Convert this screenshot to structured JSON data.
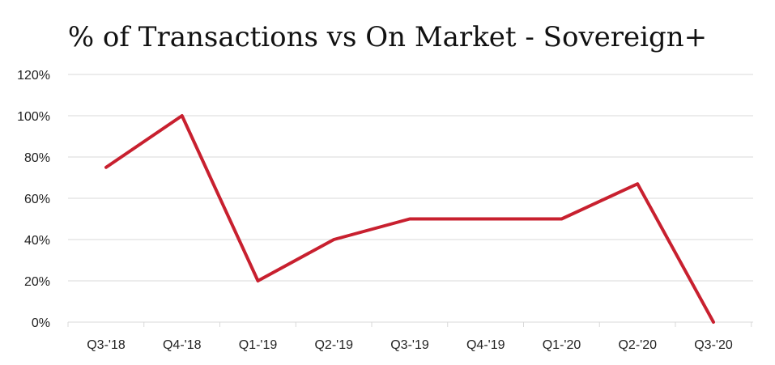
{
  "chart_data": {
    "type": "line",
    "title": "% of Transactions vs On Market - Sovereign+",
    "xlabel": "",
    "ylabel": "",
    "categories": [
      "Q3-'18",
      "Q4-'18",
      "Q1-'19",
      "Q2-'19",
      "Q3-'19",
      "Q4-'19",
      "Q1-'20",
      "Q2-'20",
      "Q3-'20"
    ],
    "series": [
      {
        "values": [
          75,
          100,
          20,
          40,
          50,
          50,
          50,
          67,
          0
        ],
        "color": "#c8202f"
      }
    ],
    "ylim": [
      0,
      120
    ],
    "yticks": [
      0,
      20,
      40,
      60,
      80,
      100,
      120
    ],
    "ytick_labels": [
      "0%",
      "20%",
      "40%",
      "60%",
      "80%",
      "100%",
      "120%"
    ],
    "grid": true,
    "legend": "none",
    "gridline_color": "#d9d9d9"
  }
}
